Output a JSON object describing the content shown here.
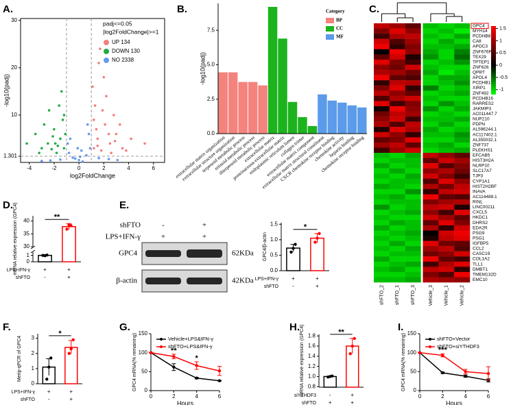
{
  "chart_data": [
    {
      "type": "scatter",
      "panel": "A.",
      "xlabel": "log2FoldChange",
      "ylabel": "-log10(padj)",
      "xlim": [
        -4.7,
        6.9
      ],
      "ylim": [
        0,
        30.4
      ],
      "xticks": [
        -4,
        -2,
        0,
        2,
        4,
        6
      ],
      "yticks": [
        1.301,
        10,
        20,
        30
      ],
      "thresholds": {
        "x": [
          -1,
          1
        ],
        "y": 1.301
      },
      "legend_title": [
        "padj<=0.05",
        "|log2FoldChange|>=1"
      ],
      "series": [
        {
          "name": "UP 134",
          "color": "#f08080",
          "x": [
            1.2,
            1.5,
            1.8,
            2.1,
            1.3,
            2.5,
            3,
            1.1,
            1.6,
            2.2,
            2.8,
            3.5,
            4.2,
            1.4,
            2,
            1.9,
            2.6,
            3.3,
            5.3,
            1.7,
            2.4,
            1.2,
            3.8,
            1.5,
            2.9
          ],
          "y": [
            3,
            5,
            2.5,
            8,
            12,
            4,
            6,
            16,
            21,
            14,
            10,
            3,
            5,
            7,
            18,
            11,
            2,
            8,
            4,
            24,
            6,
            9,
            2.5,
            3.5,
            4.5
          ]
        },
        {
          "name": "DOWN 130",
          "color": "#22aa44",
          "x": [
            -1.2,
            -1.5,
            -2,
            -1.8,
            -2.5,
            -3,
            -1.3,
            -1.6,
            -2.2,
            -3.5,
            -1.1,
            -2.8,
            -1.9,
            -1.4,
            -4.2,
            -2.4,
            -1.7,
            -3.2,
            -1.2,
            -2.1
          ],
          "y": [
            3,
            5,
            7,
            2,
            4,
            3,
            9,
            12,
            2.8,
            6,
            6,
            8,
            4,
            15,
            4,
            11,
            3.5,
            2,
            10,
            5.5
          ]
        },
        {
          "name": "NO 2338",
          "color": "#6699ee",
          "x": [
            -0.8,
            -0.5,
            0,
            0.3,
            0.6,
            0.9,
            -0.9,
            0.8,
            -0.3,
            0.2,
            -1.5,
            1.6,
            -2.3,
            2.4,
            -0.7,
            0.7,
            -3,
            3.1,
            0.1,
            -0.1
          ],
          "y": [
            2,
            1,
            0.5,
            0.2,
            1.5,
            3,
            4,
            6,
            0.8,
            2.5,
            0.6,
            0.9,
            0.4,
            0.7,
            5,
            8,
            0.3,
            0.5,
            1.2,
            3
          ]
        }
      ]
    },
    {
      "type": "bar",
      "panel": "B.",
      "ylabel": "-log10(padj)",
      "ylim": [
        0,
        9.45
      ],
      "yticks": [
        {
          "value": 0,
          "label": "0.0"
        },
        2.5,
        {
          "value": 5,
          "label": "5.0"
        },
        7.5
      ],
      "categories": [
        "extracellular matrix organization",
        "extracellular structure organization",
        "terpenoid metabolic process",
        "retinoid metabolic process",
        "diterpenoid metabolic process",
        "extracellular matrix",
        "proteinaceous extracellular matrix",
        "endoplasmic reticulum lumen",
        "collagen trimer",
        "extracellular matrix component",
        "extracellular matrix structural constituent",
        "CXCR chemokine receptor binding",
        "chemokine activity",
        "heparin binding",
        "chemokine receptor binding"
      ],
      "values": [
        4.45,
        4.45,
        3.75,
        3.75,
        3.5,
        9.2,
        6.9,
        2.3,
        1.2,
        0.55,
        2.85,
        2.4,
        2.25,
        2.05,
        1.9
      ],
      "groups": [
        "BP",
        "BP",
        "BP",
        "BP",
        "BP",
        "CC",
        "CC",
        "CC",
        "CC",
        "CC",
        "MF",
        "MF",
        "MF",
        "MF",
        "MF"
      ],
      "legend_title": "Category",
      "legend": [
        {
          "name": "BP",
          "color": "#f4837d"
        },
        {
          "name": "CC",
          "color": "#1db31d"
        },
        {
          "name": "MF",
          "color": "#5b9bea"
        }
      ]
    },
    {
      "type": "heatmap",
      "panel": "C.",
      "columns": [
        "shFTO_2",
        "shFTO_1",
        "shFTO_3",
        "Vehicle_3",
        "Vehicle_1",
        "Vehicle_2"
      ],
      "rows": [
        "GPC4",
        "MYH14",
        "PCDHB8",
        "CA8",
        "APOC3",
        "ZNF676P",
        "TEX29",
        "TPTEP1",
        "ZNF626",
        "QPRT",
        "APOL4",
        "PCDHB15",
        "XIRP1",
        "ZNF492",
        "PCDHB16",
        "RARRES2",
        "JAKMIP3",
        "AC011447.7",
        "NUP210",
        "PDPN",
        "AL596244.1",
        "AC117402.1",
        "AL355032.1",
        "ZNF737",
        "PLEKHS1",
        "EFCAB5",
        "HIST3H2A",
        "NLRP10",
        "SLC17A7",
        "TJP3",
        "CYP1A1",
        "HIST2H2BF",
        "INAVA",
        "AC114488.1",
        "RINL",
        "LINC00211",
        "CXCL5",
        "HKDC1",
        "DHRS2",
        "EDA2R",
        "PSG9",
        "PSG1",
        "IGFBP5",
        "CCL2",
        "CASC19",
        "COL1A2",
        "TLL1",
        "DMBT1",
        "TMEM132D",
        "EMC10"
      ],
      "values": [
        [
          1.2,
          1.0,
          0.6,
          -0.9,
          -1.0,
          -0.9
        ],
        [
          0.8,
          1.4,
          0.9,
          -1.0,
          -0.9,
          -1.1
        ],
        [
          0.4,
          1.1,
          1.2,
          -0.9,
          -1.0,
          -0.8
        ],
        [
          1.3,
          0.5,
          1.0,
          -1.0,
          -0.8,
          -1.0
        ],
        [
          1.5,
          0.3,
          0.8,
          -0.9,
          -0.9,
          -0.8
        ],
        [
          0.0,
          1.5,
          0.9,
          -0.8,
          -1.0,
          -0.6
        ],
        [
          0.6,
          1.3,
          0.2,
          -0.7,
          -1.0,
          -0.5
        ],
        [
          1.4,
          0.8,
          0.4,
          -1.0,
          -0.9,
          -0.7
        ],
        [
          0.9,
          0.7,
          1.3,
          -0.9,
          -1.0,
          -1.0
        ],
        [
          1.1,
          1.0,
          0.7,
          -0.8,
          -1.1,
          -0.9
        ],
        [
          1.5,
          0.6,
          0.5,
          -1.0,
          -0.8,
          -0.8
        ],
        [
          0.3,
          1.2,
          1.1,
          -1.0,
          -0.9,
          -0.7
        ],
        [
          0.8,
          1.4,
          0.3,
          -0.6,
          -1.0,
          -0.9
        ],
        [
          1.2,
          0.9,
          0.6,
          -1.0,
          -0.9,
          -0.8
        ],
        [
          0.5,
          1.1,
          1.3,
          -0.9,
          -1.0,
          -1.0
        ],
        [
          1.4,
          0.4,
          0.8,
          -1.0,
          -0.7,
          -0.9
        ],
        [
          0.1,
          1.5,
          0.9,
          -0.7,
          -1.0,
          -0.8
        ],
        [
          0.7,
          1.2,
          1.0,
          -1.0,
          -0.9,
          -1.0
        ],
        [
          0.9,
          1.3,
          0.4,
          -0.9,
          -0.9,
          -0.8
        ],
        [
          1.1,
          0.5,
          1.2,
          -1.0,
          -0.8,
          -1.0
        ],
        [
          0.2,
          1.4,
          1.1,
          -0.8,
          -1.0,
          -0.9
        ],
        [
          1.3,
          0.9,
          0.3,
          -0.9,
          -0.9,
          -0.7
        ],
        [
          0.6,
          0.8,
          1.4,
          -1.0,
          -1.0,
          -0.8
        ],
        [
          1.0,
          1.2,
          0.6,
          -0.9,
          -0.8,
          -1.0
        ],
        [
          0.4,
          1.0,
          1.3,
          -1.0,
          -0.9,
          -0.8
        ],
        [
          -0.9,
          -1.0,
          -0.8,
          1.2,
          0.9,
          0.6
        ],
        [
          -1.0,
          -0.9,
          -0.9,
          0.6,
          1.3,
          1.0
        ],
        [
          -0.8,
          -1.0,
          -0.9,
          1.4,
          0.5,
          0.8
        ],
        [
          -1.0,
          -0.8,
          -1.0,
          0.9,
          1.1,
          0.7
        ],
        [
          -0.9,
          -1.0,
          -0.8,
          1.3,
          0.8,
          0.4
        ],
        [
          -1.0,
          -0.9,
          -0.9,
          0.5,
          1.4,
          0.9
        ],
        [
          -0.8,
          -0.9,
          -1.0,
          1.1,
          0.7,
          1.2
        ],
        [
          -1.0,
          -1.0,
          -0.7,
          0.3,
          1.2,
          1.3
        ],
        [
          -0.9,
          -0.8,
          -1.0,
          1.5,
          0.6,
          0.5
        ],
        [
          -1.0,
          -0.9,
          -0.9,
          0.8,
          1.0,
          1.1
        ],
        [
          -0.7,
          -1.0,
          -0.9,
          1.2,
          1.3,
          0.2
        ],
        [
          -1.0,
          -0.9,
          -0.8,
          0.9,
          0.4,
          1.4
        ],
        [
          -0.9,
          -1.0,
          -1.0,
          1.3,
          1.0,
          0.6
        ],
        [
          -1.0,
          -0.8,
          -0.9,
          0.6,
          1.4,
          0.8
        ],
        [
          -0.8,
          -1.0,
          -0.9,
          1.1,
          0.3,
          1.3
        ],
        [
          -1.0,
          -0.9,
          -0.8,
          0.0,
          1.3,
          1.5
        ],
        [
          -0.9,
          -1.0,
          -0.9,
          0.2,
          1.2,
          1.4
        ],
        [
          -1.0,
          -0.8,
          -1.0,
          1.4,
          0.7,
          0.6
        ],
        [
          -0.9,
          -1.0,
          -0.8,
          1.0,
          1.2,
          0.5
        ],
        [
          -1.0,
          -0.9,
          -0.9,
          0.7,
          0.9,
          1.3
        ],
        [
          -0.8,
          -1.0,
          -1.0,
          1.5,
          0.6,
          0.4
        ],
        [
          -1.0,
          -0.9,
          -0.8,
          0.4,
          1.1,
          1.4
        ],
        [
          -0.9,
          -0.8,
          -1.0,
          1.2,
          1.3,
          0.3
        ],
        [
          -1.0,
          -1.0,
          -0.9,
          0.8,
          0.5,
          1.5
        ],
        [
          -0.9,
          -0.9,
          -0.8,
          1.1,
          1.0,
          0.9
        ]
      ],
      "colorbar": {
        "lim": [
          -1.2,
          1.6
        ],
        "ticks": [
          1.5,
          1,
          0.5,
          0,
          -0.5,
          -1
        ],
        "colors": [
          "#00ff00",
          "#000000",
          "#ff0000"
        ]
      }
    },
    {
      "type": "bar",
      "panel": "D.",
      "ylabel": "mRNA relative expression (GPC4)",
      "ylim": [
        0,
        42
      ],
      "ybreak": [
        1.5,
        30
      ],
      "yticks": [
        0,
        1,
        30,
        35,
        40
      ],
      "values": [
        1.0,
        37.8
      ],
      "errors": [
        0.05,
        1.2
      ],
      "points": [
        [
          1.0,
          0.95,
          1.05
        ],
        [
          36.8,
          38.5,
          38.2
        ]
      ],
      "colors": [
        "#000000",
        "#ff0000"
      ],
      "significance": "**",
      "conditions": [
        {
          "name": "LPS+IFN-γ",
          "signs": [
            "+",
            "+"
          ]
        },
        {
          "name": "shFTO",
          "signs": [
            "-",
            "+"
          ]
        }
      ]
    },
    {
      "type": "blot",
      "panel": "E.",
      "conditions": [
        {
          "name": "shFTO",
          "signs": [
            "-",
            "+"
          ]
        },
        {
          "name": "LPS+IFN-γ",
          "signs": [
            "+",
            "+"
          ]
        }
      ],
      "bands": [
        {
          "name": "GPC4",
          "size": "62KDa"
        },
        {
          "name": "β-actin",
          "size": "42KDa"
        }
      ]
    },
    {
      "type": "bar",
      "ylabel": "GPC4/β-actin",
      "ylim": [
        0,
        1.55
      ],
      "yticks": [
        {
          "value": 0,
          "label": "0.0"
        },
        0.5,
        {
          "value": 1,
          "label": "1.0"
        },
        1.5
      ],
      "values": [
        0.73,
        1.05
      ],
      "errors": [
        0.12,
        0.15
      ],
      "points": [
        [
          0.6,
          0.72,
          0.85
        ],
        [
          0.92,
          1.05,
          1.2
        ]
      ],
      "colors": [
        "#000000",
        "#ff0000"
      ],
      "significance": "*",
      "conditions": [
        {
          "name": "LPS+IFN-γ",
          "signs": [
            "+",
            "+"
          ]
        },
        {
          "name": "shFTO",
          "signs": [
            "-",
            "+"
          ]
        }
      ]
    },
    {
      "type": "bar",
      "panel": "F.",
      "ylabel": "Merip-qPCR of GPC4",
      "ylim": [
        0,
        3.3
      ],
      "yticks": [
        0,
        1,
        2,
        3
      ],
      "values": [
        1.1,
        2.4
      ],
      "errors": [
        0.55,
        0.45
      ],
      "points": [
        [
          0.3,
          1.1,
          1.7
        ],
        [
          2.0,
          2.3,
          2.9
        ]
      ],
      "colors": [
        "#000000",
        "#ff0000"
      ],
      "significance": "*",
      "conditions": [
        {
          "name": "LPS+IFN-γ",
          "signs": [
            "+",
            "+"
          ]
        },
        {
          "name": "shFTO",
          "signs": [
            "-",
            "+"
          ]
        }
      ]
    },
    {
      "type": "line",
      "panel": "G.",
      "xlabel": "Hours",
      "ylabel": "GPC4 mRNA(% remaining)",
      "x": [
        0,
        2,
        4,
        6
      ],
      "xlim": [
        0,
        6
      ],
      "xticks": [
        0,
        2,
        4,
        6
      ],
      "ylim": [
        0,
        150
      ],
      "yticks": [
        0,
        50,
        100,
        150
      ],
      "significance": [
        null,
        "**",
        "*",
        null
      ],
      "series": [
        {
          "name": "Vehicle+LPS&IFN-γ",
          "color": "#000000",
          "values": [
            100,
            62,
            33,
            26
          ],
          "errors": [
            0,
            9,
            2,
            1
          ]
        },
        {
          "name": "shFTO+LPS&IFN-γ",
          "color": "#ff0000",
          "values": [
            100,
            90,
            66,
            52
          ],
          "errors": [
            0,
            6,
            10,
            12
          ]
        }
      ]
    },
    {
      "type": "bar",
      "panel": "H.",
      "ylabel": "mRNA relative expression (GPC4)",
      "ylim": [
        0.79,
        1.83
      ],
      "yticks": [
        0.8,
        {
          "value": 1,
          "label": "1.0"
        },
        1.2,
        1.4,
        1.6,
        1.8
      ],
      "values": [
        1.0,
        1.6
      ],
      "errors": [
        0.01,
        0.15
      ],
      "points": [
        [
          0.99,
          1.0,
          1.01
        ],
        [
          1.45,
          1.6,
          1.75
        ]
      ],
      "colors": [
        "#000000",
        "#ff0000"
      ],
      "significance": "**",
      "conditions": [
        {
          "name": "siYTHDF3",
          "signs": [
            "-",
            "+"
          ]
        },
        {
          "name": "shFTO",
          "signs": [
            "+",
            "+"
          ]
        }
      ]
    },
    {
      "type": "line",
      "panel": "I.",
      "xlabel": "Hours",
      "ylabel": "GPC4 mRNA(% remaining)",
      "x": [
        0,
        2,
        4,
        6
      ],
      "xlim": [
        0,
        6
      ],
      "xticks": [
        0,
        2,
        4,
        6
      ],
      "ylim": [
        0,
        150
      ],
      "yticks": [
        0,
        50,
        100,
        150
      ],
      "significance": [
        null,
        "***",
        null,
        null
      ],
      "series": [
        {
          "name": "shFTO+Vector",
          "color": "#000000",
          "values": [
            100,
            47,
            38,
            27
          ],
          "errors": [
            0,
            2,
            3,
            4
          ]
        },
        {
          "name": "shFTO+siYTHDF3",
          "color": "#ff0000",
          "values": [
            100,
            93,
            50,
            45
          ],
          "errors": [
            0,
            4,
            6,
            18
          ]
        }
      ]
    }
  ]
}
